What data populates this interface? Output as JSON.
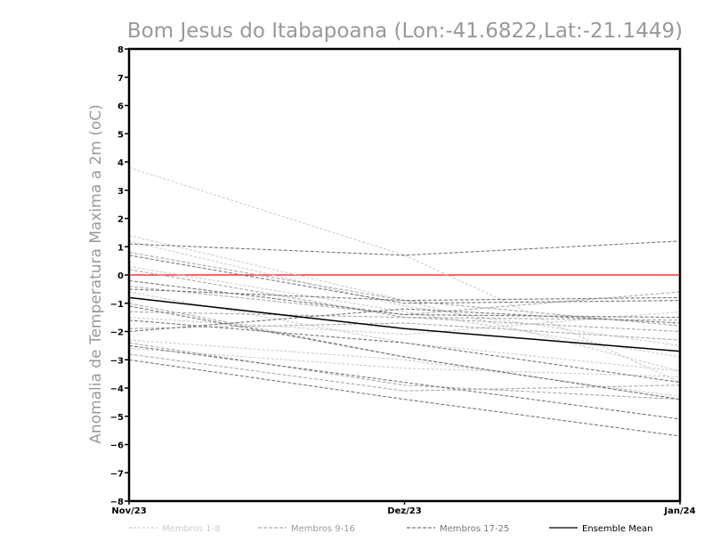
{
  "chart_data": {
    "type": "line",
    "title": "Bom Jesus do Itabapoana (Lon:-41.6822,Lat:-21.1449)",
    "ylabel": "Anomalia de Temperatura Maxima a 2m (oC)",
    "xlabel": "",
    "categories": [
      "Nov/23",
      "Dez/23",
      "Jan/24"
    ],
    "ylim": [
      -8,
      8
    ],
    "yticks": [
      -8,
      -7,
      -6,
      -5,
      -4,
      -3,
      -2,
      -1,
      0,
      1,
      2,
      3,
      4,
      5,
      6,
      7,
      8
    ],
    "zero_line": {
      "value": 0,
      "color": "#ff3333"
    },
    "series": [
      {
        "group": "Membros 1-8",
        "values": [
          3.8,
          0.7,
          -3.8
        ]
      },
      {
        "group": "Membros 1-8",
        "values": [
          1.4,
          -0.9,
          -3.4
        ]
      },
      {
        "group": "Membros 1-8",
        "values": [
          1.2,
          -1.1,
          -2.5
        ]
      },
      {
        "group": "Membros 1-8",
        "values": [
          0.3,
          -1.3,
          -2.9
        ]
      },
      {
        "group": "Membros 1-8",
        "values": [
          -0.6,
          -2.4,
          -3.4
        ]
      },
      {
        "group": "Membros 1-8",
        "values": [
          -1.5,
          -2.1,
          -1.3
        ]
      },
      {
        "group": "Membros 1-8",
        "values": [
          -2.3,
          -3.0,
          -4.3
        ]
      },
      {
        "group": "Membros 1-8",
        "values": [
          -2.6,
          -3.3,
          -3.6
        ]
      },
      {
        "group": "Membros 9-16",
        "values": [
          0.8,
          -0.9,
          -1.8
        ]
      },
      {
        "group": "Membros 9-16",
        "values": [
          0.2,
          -1.5,
          -2.0
        ]
      },
      {
        "group": "Membros 9-16",
        "values": [
          -0.4,
          -1.4,
          -0.6
        ]
      },
      {
        "group": "Membros 9-16",
        "values": [
          -1.0,
          -2.9,
          -4.4
        ]
      },
      {
        "group": "Membros 9-16",
        "values": [
          -1.3,
          -1.5,
          -1.6
        ]
      },
      {
        "group": "Membros 9-16",
        "values": [
          -1.9,
          -1.7,
          -2.3
        ]
      },
      {
        "group": "Membros 9-16",
        "values": [
          -2.4,
          -3.9,
          -4.4
        ]
      },
      {
        "group": "Membros 9-16",
        "values": [
          -2.8,
          -4.1,
          -3.9
        ]
      },
      {
        "group": "Membros 17-25",
        "values": [
          1.1,
          0.7,
          1.2
        ]
      },
      {
        "group": "Membros 17-25",
        "values": [
          0.7,
          -1.0,
          -0.9
        ]
      },
      {
        "group": "Membros 17-25",
        "values": [
          -0.2,
          -1.4,
          -1.5
        ]
      },
      {
        "group": "Membros 17-25",
        "values": [
          -0.5,
          -0.9,
          -0.8
        ]
      },
      {
        "group": "Membros 17-25",
        "values": [
          -1.1,
          -2.9,
          -4.4
        ]
      },
      {
        "group": "Membros 17-25",
        "values": [
          -1.6,
          -2.4,
          -3.8
        ]
      },
      {
        "group": "Membros 17-25",
        "values": [
          -2.0,
          -1.2,
          -1.7
        ]
      },
      {
        "group": "Membros 17-25",
        "values": [
          -2.5,
          -3.8,
          -5.1
        ]
      },
      {
        "group": "Membros 17-25",
        "values": [
          -3.0,
          -4.4,
          -5.7
        ]
      },
      {
        "group": "Ensemble Mean",
        "values": [
          -0.8,
          -1.9,
          -2.7
        ]
      }
    ],
    "legend": [
      {
        "label": "Membros 1-8",
        "color": "#cccccc",
        "dash": "dotted"
      },
      {
        "label": "Membros 9-16",
        "color": "#aaaaaa",
        "dash": "dashed"
      },
      {
        "label": "Membros 17-25",
        "color": "#777777",
        "dash": "dashed"
      },
      {
        "label": "Ensemble Mean",
        "color": "#000000",
        "dash": "solid"
      }
    ],
    "legend_placement": "bottom",
    "grid": false
  }
}
